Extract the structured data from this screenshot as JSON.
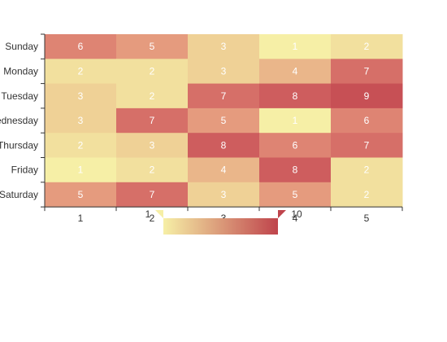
{
  "chart_data": {
    "type": "heatmap",
    "title": "",
    "xlabel": "",
    "ylabel": "",
    "x_categories": [
      "1",
      "2",
      "3",
      "4",
      "5"
    ],
    "y_categories": [
      "Sunday",
      "Monday",
      "Tuesday",
      "Wednesday",
      "Thursday",
      "Friday",
      "Saturday"
    ],
    "values": [
      [
        6,
        5,
        3,
        1,
        2
      ],
      [
        2,
        2,
        3,
        4,
        7
      ],
      [
        3,
        2,
        7,
        8,
        9
      ],
      [
        3,
        7,
        5,
        1,
        6
      ],
      [
        2,
        3,
        8,
        6,
        7
      ],
      [
        1,
        2,
        4,
        8,
        2
      ],
      [
        5,
        7,
        3,
        5,
        2
      ]
    ],
    "visual_map": {
      "min": 1,
      "max": 10,
      "min_label": "1",
      "max_label": "10",
      "color_low": "#f6efa6",
      "color_high": "#bf444c"
    }
  }
}
